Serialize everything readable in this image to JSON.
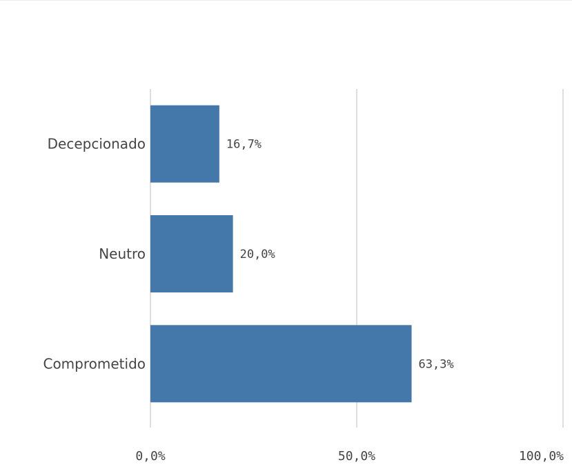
{
  "chart_data": {
    "type": "bar",
    "orientation": "horizontal",
    "categories": [
      "Decepcionado",
      "Neutro",
      "Comprometido"
    ],
    "values": [
      16.7,
      20.0,
      63.3
    ],
    "value_labels": [
      "16,7%",
      "20,0%",
      "63,3%"
    ],
    "x_ticks": [
      0,
      50,
      100
    ],
    "x_tick_labels": [
      "0,0%",
      "50,0%",
      "100,0%"
    ],
    "xlim": [
      0,
      100
    ],
    "grid": true,
    "legend": "none",
    "bar_color": "#4477aa",
    "title": "",
    "xlabel": "",
    "ylabel": ""
  }
}
